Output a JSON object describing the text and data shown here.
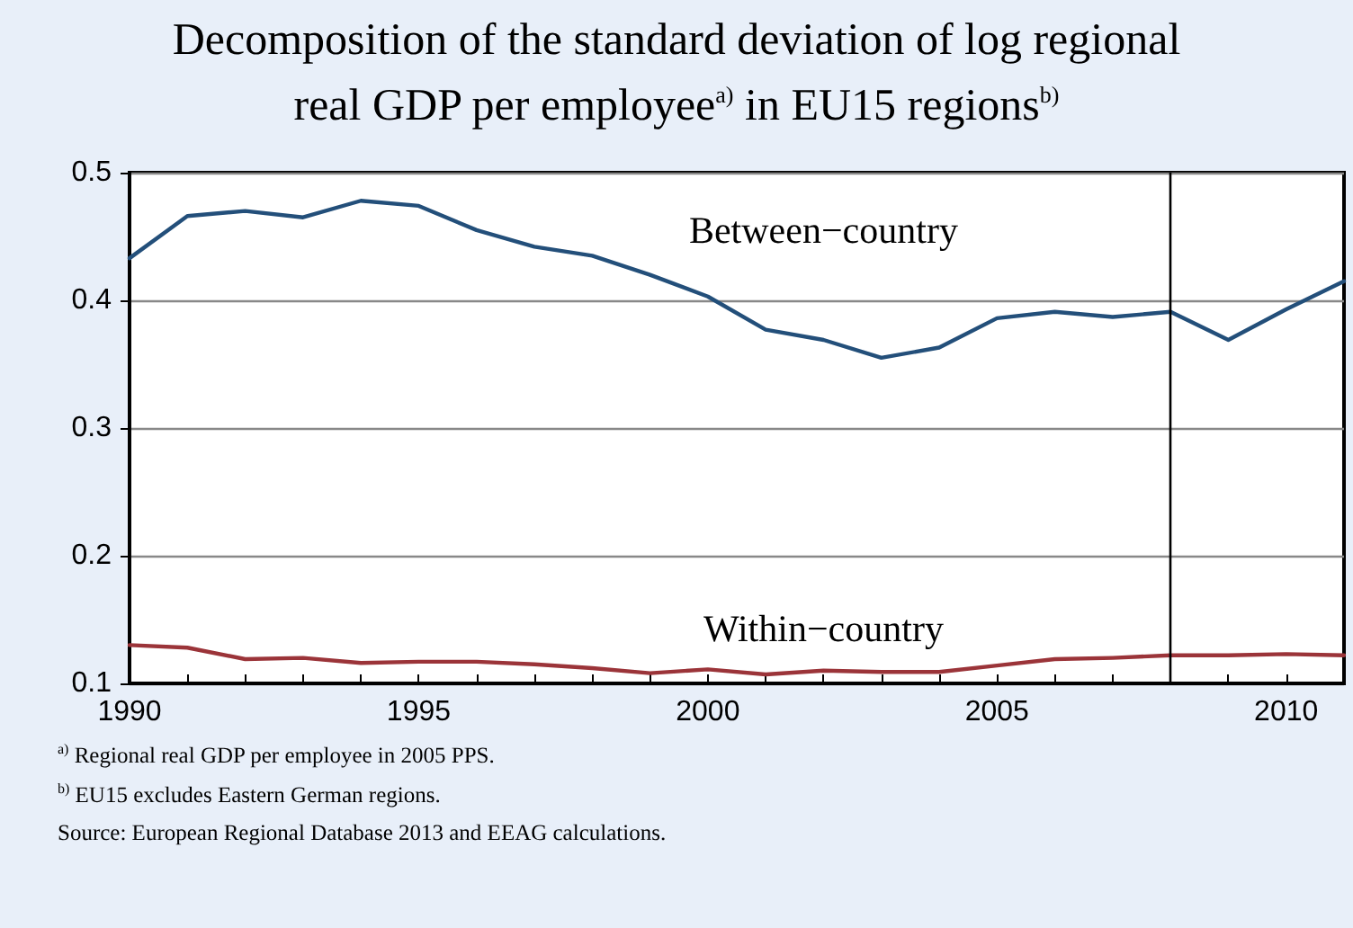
{
  "chart_data": {
    "type": "line",
    "title": "Decomposition of the standard deviation of log regional real GDP per employee$^{a)}$ in EU15 regions$^{b)}$",
    "x": [
      1990,
      1991,
      1992,
      1993,
      1994,
      1995,
      1996,
      1997,
      1998,
      1999,
      2000,
      2001,
      2002,
      2003,
      2004,
      2005,
      2006,
      2007,
      2008,
      2009,
      2010,
      2011
    ],
    "series": [
      {
        "name": "Between−country",
        "color": "#234f7a",
        "values": [
          0.433,
          0.466,
          0.47,
          0.465,
          0.478,
          0.474,
          0.455,
          0.442,
          0.435,
          0.42,
          0.403,
          0.377,
          0.369,
          0.355,
          0.363,
          0.386,
          0.391,
          0.387,
          0.391,
          0.369,
          0.393,
          0.415
        ]
      },
      {
        "name": "Within−country",
        "color": "#9b3439",
        "values": [
          0.13,
          0.128,
          0.119,
          0.12,
          0.116,
          0.117,
          0.117,
          0.115,
          0.112,
          0.108,
          0.111,
          0.107,
          0.11,
          0.109,
          0.109,
          0.114,
          0.119,
          0.12,
          0.122,
          0.122,
          0.123,
          0.122
        ]
      }
    ],
    "xlim": [
      1990,
      2011
    ],
    "xticks": [
      1990,
      1995,
      2000,
      2005,
      2010
    ],
    "ylim": [
      0.1,
      0.5
    ],
    "yticks": [
      0.1,
      0.2,
      0.3,
      0.4,
      0.5
    ],
    "grid": "y",
    "legend": false,
    "marker": "none",
    "line_style": "solid",
    "ref_lines": [
      {
        "axis": "x",
        "value": 2008,
        "color": "#000000"
      }
    ],
    "annotations": [
      "$^{a)}$ Regional real GDP per employee in 2005 PPS.",
      "$^{b)}$ EU15 excludes Eastern German regions.",
      "Source: European Regional Database 2013 and EEAG calculations."
    ]
  }
}
